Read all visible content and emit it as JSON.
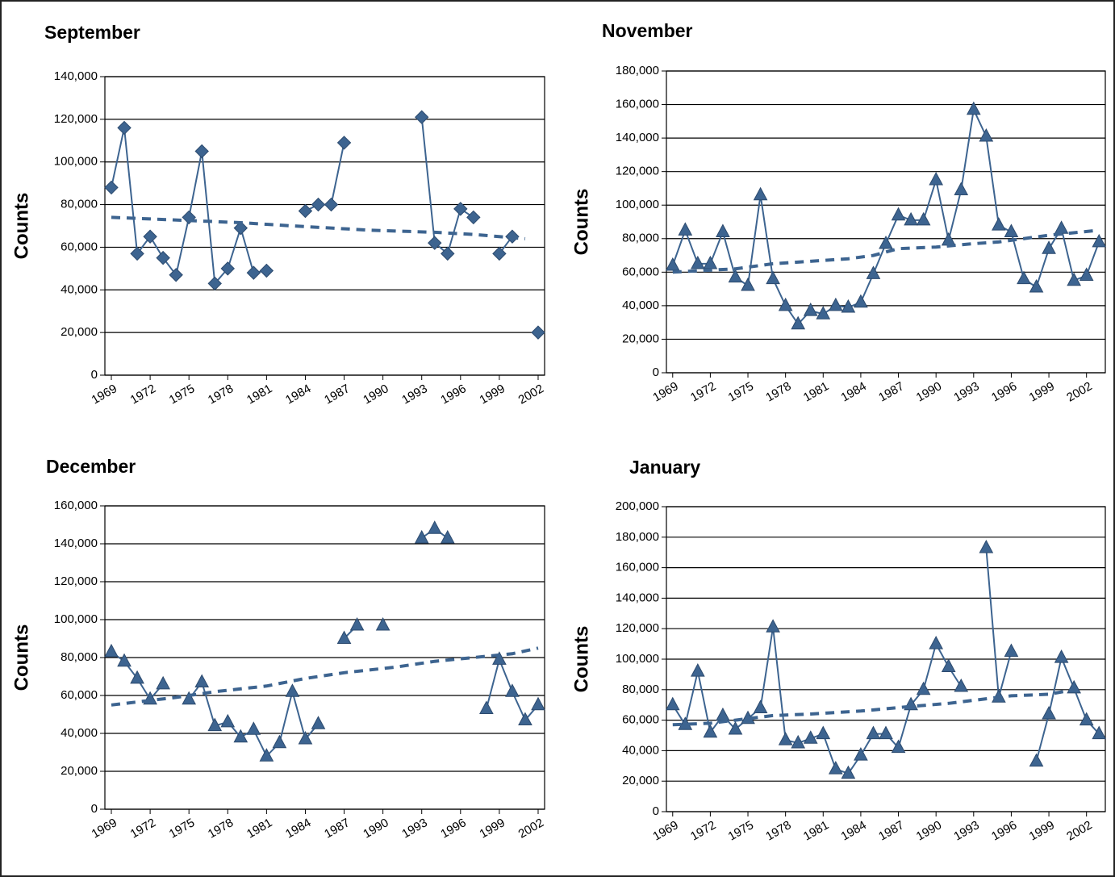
{
  "chart_data": [
    {
      "type": "line",
      "title": "September",
      "ylabel": "Counts",
      "x": [
        1969,
        1970,
        1971,
        1972,
        1973,
        1974,
        1975,
        1976,
        1977,
        1978,
        1979,
        1980,
        1981,
        1982,
        1983,
        1984,
        1985,
        1986,
        1987,
        1988,
        1989,
        1990,
        1991,
        1992,
        1993,
        1994,
        1995,
        1996,
        1997,
        1998,
        1999,
        2000,
        2001,
        2002
      ],
      "xlim": [
        1968.5,
        2002.5
      ],
      "xticks": [
        1969,
        1972,
        1975,
        1978,
        1981,
        1984,
        1987,
        1990,
        1993,
        1996,
        1999,
        2002
      ],
      "ylim": [
        0,
        140000
      ],
      "yticks": [
        0,
        {
          "value": 20000,
          "label": "20,000"
        },
        {
          "value": 40000,
          "label": "40,000"
        },
        {
          "value": 60000,
          "label": "60,000"
        },
        {
          "value": 80000,
          "label": "80,000"
        },
        {
          "value": 100000,
          "label": "100,000"
        },
        {
          "value": 120000,
          "label": "120,000"
        },
        {
          "value": 140000,
          "label": "140,000"
        }
      ],
      "grid": true,
      "series": [
        {
          "color": "#3d6490",
          "marker": "diamond",
          "values": [
            88000,
            116000,
            57000,
            65000,
            55000,
            47000,
            74000,
            105000,
            43000,
            50000,
            69000,
            48000,
            49000,
            null,
            null,
            77000,
            80000,
            80000,
            109000,
            null,
            null,
            null,
            null,
            null,
            121000,
            62000,
            57000,
            78000,
            74000,
            null,
            57000,
            65000,
            null,
            20000
          ]
        },
        {
          "color": "#3d6490",
          "dash": true,
          "x": [
            1969,
            1979,
            1983,
            1989,
            1994,
            1997,
            2001
          ],
          "values": [
            74000,
            71500,
            70000,
            68000,
            67000,
            66000,
            64000
          ]
        }
      ]
    },
    {
      "type": "line",
      "title": "November",
      "ylabel": "Counts",
      "x": [
        1969,
        1970,
        1971,
        1972,
        1973,
        1974,
        1975,
        1976,
        1977,
        1978,
        1979,
        1980,
        1981,
        1982,
        1983,
        1984,
        1985,
        1986,
        1987,
        1988,
        1989,
        1990,
        1991,
        1992,
        1993,
        1994,
        1995,
        1996,
        1997,
        1998,
        1999,
        2000,
        2001,
        2002,
        2003
      ],
      "xlim": [
        1968.5,
        2003.5
      ],
      "xticks": [
        1969,
        1972,
        1975,
        1978,
        1981,
        1984,
        1987,
        1990,
        1993,
        1996,
        1999,
        2002
      ],
      "ylim": [
        0,
        180000
      ],
      "yticks": [
        0,
        {
          "value": 20000,
          "label": "20,000"
        },
        {
          "value": 40000,
          "label": "40,000"
        },
        {
          "value": 60000,
          "label": "60,000"
        },
        {
          "value": 80000,
          "label": "80,000"
        },
        {
          "value": 100000,
          "label": "100,000"
        },
        {
          "value": 120000,
          "label": "120,000"
        },
        {
          "value": 140000,
          "label": "140,000"
        },
        {
          "value": 160000,
          "label": "160,000"
        },
        {
          "value": 180000,
          "label": "180,000"
        }
      ],
      "grid": true,
      "series": [
        {
          "color": "#3d6490",
          "marker": "triangle",
          "values": [
            64000,
            85000,
            65000,
            65000,
            84000,
            57000,
            52000,
            106000,
            56000,
            40000,
            29000,
            37000,
            35000,
            40000,
            39000,
            42000,
            59000,
            77000,
            94000,
            91000,
            91000,
            115000,
            79000,
            109000,
            157000,
            141000,
            88000,
            84000,
            56000,
            51000,
            74000,
            86000,
            55000,
            58000,
            78000
          ]
        },
        {
          "color": "#3d6490",
          "dash": true,
          "x": [
            1969,
            1974,
            1977,
            1983,
            1985,
            1987,
            1990,
            1993,
            1995,
            1999,
            2003
          ],
          "values": [
            60000,
            62000,
            65000,
            68000,
            70000,
            74000,
            75000,
            77000,
            78000,
            82000,
            85000
          ]
        }
      ]
    },
    {
      "type": "line",
      "title": "December",
      "ylabel": "Counts",
      "x": [
        1969,
        1970,
        1971,
        1972,
        1973,
        1974,
        1975,
        1976,
        1977,
        1978,
        1979,
        1980,
        1981,
        1982,
        1983,
        1984,
        1985,
        1986,
        1987,
        1988,
        1989,
        1990,
        1991,
        1992,
        1993,
        1994,
        1995,
        1996,
        1997,
        1998,
        1999,
        2000,
        2001,
        2002
      ],
      "xlim": [
        1968.5,
        2002.5
      ],
      "xticks": [
        1969,
        1972,
        1975,
        1978,
        1981,
        1984,
        1987,
        1990,
        1993,
        1996,
        1999,
        2002
      ],
      "ylim": [
        0,
        160000
      ],
      "yticks": [
        0,
        {
          "value": 20000,
          "label": "20,000"
        },
        {
          "value": 40000,
          "label": "40,000"
        },
        {
          "value": 60000,
          "label": "60,000"
        },
        {
          "value": 80000,
          "label": "80,000"
        },
        {
          "value": 100000,
          "label": "100,000"
        },
        {
          "value": 120000,
          "label": "120,000"
        },
        {
          "value": 140000,
          "label": "140,000"
        },
        {
          "value": 160000,
          "label": "160,000"
        }
      ],
      "grid": true,
      "series": [
        {
          "color": "#3d6490",
          "marker": "triangle",
          "values": [
            83000,
            78000,
            69000,
            58000,
            66000,
            null,
            58000,
            67000,
            44000,
            46000,
            38000,
            42000,
            28000,
            35000,
            62000,
            37000,
            45000,
            null,
            90000,
            97000,
            null,
            97000,
            null,
            null,
            143000,
            148000,
            143000,
            null,
            null,
            53000,
            79000,
            62000,
            47000,
            55000
          ]
        },
        {
          "color": "#3d6490",
          "dash": true,
          "x": [
            1969,
            1974,
            1977,
            1981,
            1984,
            1987,
            1991,
            1994,
            1997,
            2000,
            2002
          ],
          "values": [
            55000,
            59000,
            62000,
            65000,
            69000,
            72000,
            75000,
            78000,
            80000,
            82000,
            85000
          ]
        }
      ]
    },
    {
      "type": "line",
      "title": "January",
      "ylabel": "Counts",
      "x": [
        1969,
        1970,
        1971,
        1972,
        1973,
        1974,
        1975,
        1976,
        1977,
        1978,
        1979,
        1980,
        1981,
        1982,
        1983,
        1984,
        1985,
        1986,
        1987,
        1988,
        1989,
        1990,
        1991,
        1992,
        1993,
        1994,
        1995,
        1996,
        1997,
        1998,
        1999,
        2000,
        2001,
        2002,
        2003
      ],
      "xlim": [
        1968.5,
        2003.5
      ],
      "xticks": [
        1969,
        1972,
        1975,
        1978,
        1981,
        1984,
        1987,
        1990,
        1993,
        1996,
        1999,
        2002
      ],
      "ylim": [
        0,
        200000
      ],
      "yticks": [
        0,
        {
          "value": 20000,
          "label": "20,000"
        },
        {
          "value": 40000,
          "label": "40,000"
        },
        {
          "value": 60000,
          "label": "60,000"
        },
        {
          "value": 80000,
          "label": "80,000"
        },
        {
          "value": 100000,
          "label": "100,000"
        },
        {
          "value": 120000,
          "label": "120,000"
        },
        {
          "value": 140000,
          "label": "140,000"
        },
        {
          "value": 160000,
          "label": "160,000"
        },
        {
          "value": 180000,
          "label": "180,000"
        },
        {
          "value": 200000,
          "label": "200,000"
        }
      ],
      "grid": true,
      "series": [
        {
          "color": "#3d6490",
          "marker": "triangle",
          "values": [
            70000,
            57000,
            92000,
            52000,
            63000,
            54000,
            61000,
            68000,
            121000,
            47000,
            45000,
            48000,
            51000,
            28000,
            25000,
            37000,
            51000,
            51000,
            42000,
            70000,
            80000,
            110000,
            95000,
            82000,
            null,
            173000,
            75000,
            105000,
            null,
            33000,
            64000,
            101000,
            81000,
            60000,
            51000
          ]
        },
        {
          "color": "#3d6490",
          "dash": true,
          "x": [
            1969,
            1972,
            1977,
            1980,
            1984,
            1988,
            1991,
            1993,
            1996,
            1999,
            2001
          ],
          "values": [
            57000,
            58000,
            63000,
            64000,
            66000,
            69000,
            71000,
            73000,
            76000,
            77000,
            80000
          ]
        }
      ]
    }
  ]
}
